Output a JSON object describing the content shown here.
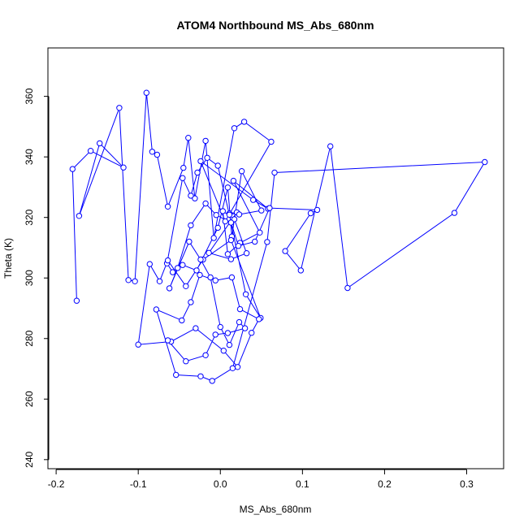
{
  "chart_data": {
    "type": "line",
    "title": "ATOM4 Northbound MS_Abs_680nm",
    "xlabel": "MS_Abs_680nm",
    "ylabel": "Theta (K)",
    "xlim": [
      -0.21,
      0.345
    ],
    "ylim": [
      237,
      376
    ],
    "xticks": [
      "-0.2",
      "-0.1",
      "0.0",
      "0.1",
      "0.2",
      "0.3"
    ],
    "yticks": [
      "240",
      "260",
      "280",
      "300",
      "320",
      "340",
      "360"
    ],
    "grid": false,
    "legend": "none",
    "series_style": {
      "color": "#0000ff",
      "marker": "open-circle",
      "line": true
    },
    "series": [
      {
        "x": [
          -0.175,
          -0.18,
          -0.158,
          -0.118,
          -0.147,
          -0.172,
          -0.123,
          -0.112,
          -0.104,
          -0.09,
          -0.083,
          -0.077,
          -0.064,
          -0.045,
          -0.039,
          -0.031,
          -0.018,
          -0.008,
          0.017,
          0.029,
          0.062,
          0.006,
          -0.024,
          0.04,
          0.058,
          0.016,
          0.048,
          0.024,
          0.009,
          0.003,
          0.017,
          0.032,
          0.013,
          -0.014,
          0.02,
          0.011,
          0.023,
          0.05,
          0.026,
          0.014,
          0.009,
          -0.003,
          -0.029,
          -0.046,
          -0.058,
          -0.065,
          -0.046,
          -0.036,
          -0.028,
          -0.016,
          -0.003,
          0.011,
          0.031,
          0.049,
          0.013,
          -0.021,
          -0.042,
          -0.064,
          -0.074,
          -0.086,
          -0.1,
          -0.06,
          -0.03,
          0.004,
          0.021,
          0.038,
          0.047,
          0.024,
          0.014,
          -0.006,
          -0.025,
          -0.036,
          -0.047,
          -0.078,
          -0.054,
          -0.024,
          -0.01,
          0.015,
          0.057,
          0.066,
          0.322,
          0.285,
          0.155,
          0.134,
          0.098,
          0.079,
          0.11,
          0.118,
          0.06,
          0.042,
          0.022,
          0.013,
          -0.005,
          -0.018,
          -0.036,
          -0.052,
          -0.062,
          -0.038,
          -0.024,
          -0.012,
          0.0,
          0.011,
          0.023,
          0.03,
          0.009,
          -0.006,
          -0.018,
          -0.042,
          -0.064
        ],
        "y": [
          292.5,
          336.0,
          342.0,
          336.5,
          344.5,
          320.5,
          356.2,
          299.3,
          298.9,
          361.2,
          341.7,
          340.7,
          323.6,
          336.4,
          346.3,
          326.3,
          345.3,
          313.2,
          349.5,
          351.6,
          345.0,
          318.7,
          338.6,
          325.8,
          322.9,
          332.1,
          315.0,
          311.6,
          307.9,
          322.1,
          319.4,
          308.2,
          306.2,
          308.3,
          321.7,
          321.3,
          321.0,
          322.3,
          335.3,
          313.7,
          329.9,
          316.6,
          302.5,
          304.3,
          301.9,
          304.8,
          333.0,
          327.2,
          334.8,
          339.7,
          337.1,
          320.9,
          294.6,
          286.8,
          312.5,
          306.1,
          297.3,
          305.8,
          298.9,
          304.6,
          278.0,
          279.0,
          283.4,
          276.0,
          270.6,
          281.9,
          286.4,
          289.7,
          300.2,
          299.2,
          301.0,
          292.0,
          286.0,
          289.6,
          268.0,
          267.5,
          266.0,
          270.2,
          311.9,
          334.8,
          338.3,
          321.5,
          296.7,
          343.5,
          302.5,
          308.9,
          321.4,
          322.5,
          323.1,
          312.0,
          310.6,
          318.3,
          320.8,
          324.6,
          317.4,
          303.3,
          296.6,
          312.0,
          306.1,
          300.2,
          283.8,
          277.9,
          285.4,
          283.4,
          281.8,
          281.3,
          274.5,
          272.5,
          279.4
        ]
      }
    ]
  }
}
